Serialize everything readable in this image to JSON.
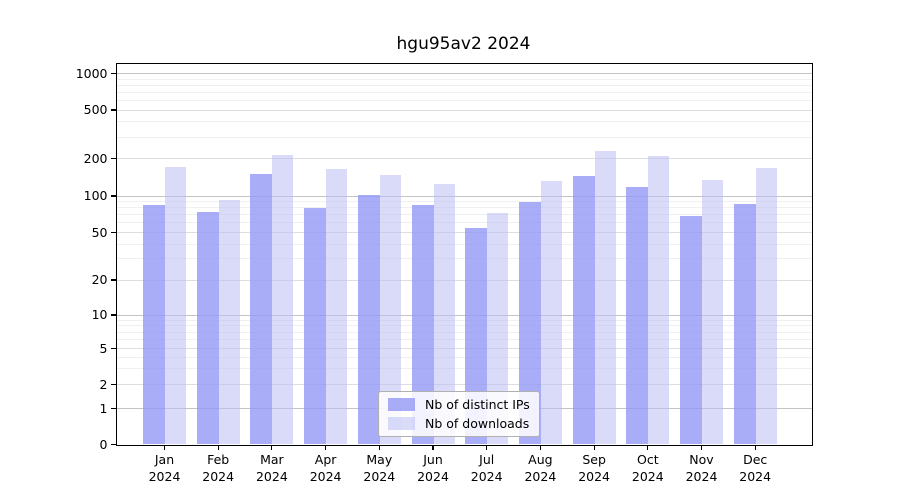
{
  "chart_data": {
    "type": "bar",
    "title": "hgu95av2 2024",
    "categories": [
      {
        "month": "Jan",
        "year": "2024"
      },
      {
        "month": "Feb",
        "year": "2024"
      },
      {
        "month": "Mar",
        "year": "2024"
      },
      {
        "month": "Apr",
        "year": "2024"
      },
      {
        "month": "May",
        "year": "2024"
      },
      {
        "month": "Jun",
        "year": "2024"
      },
      {
        "month": "Jul",
        "year": "2024"
      },
      {
        "month": "Aug",
        "year": "2024"
      },
      {
        "month": "Sep",
        "year": "2024"
      },
      {
        "month": "Oct",
        "year": "2024"
      },
      {
        "month": "Nov",
        "year": "2024"
      },
      {
        "month": "Dec",
        "year": "2024"
      }
    ],
    "series": [
      {
        "name": "Nb of distinct IPs",
        "fill": "#9497f4",
        "fill_opacity": 0.8,
        "values": [
          85,
          74,
          150,
          80,
          102,
          84,
          54,
          90,
          146,
          119,
          68,
          86
        ]
      },
      {
        "name": "Nb of downloads",
        "fill": "#babef2",
        "fill_opacity": 0.55,
        "values": [
          170,
          92,
          213,
          165,
          148,
          124,
          72,
          132,
          230,
          210,
          134,
          169
        ]
      }
    ],
    "y_axis": {
      "tick_values": [
        0,
        1,
        2,
        5,
        10,
        20,
        50,
        100,
        200,
        500,
        1000
      ],
      "scale": "log-like",
      "ylim": [
        0,
        1200
      ]
    },
    "xlabel": "",
    "ylabel": "",
    "grid": true,
    "legend_position": "bottom-center",
    "colors": {
      "decade_gridline": "#c4c4c4",
      "labeled_gridline": "#dedede",
      "minor_gridline": "#f0f0f0"
    }
  }
}
